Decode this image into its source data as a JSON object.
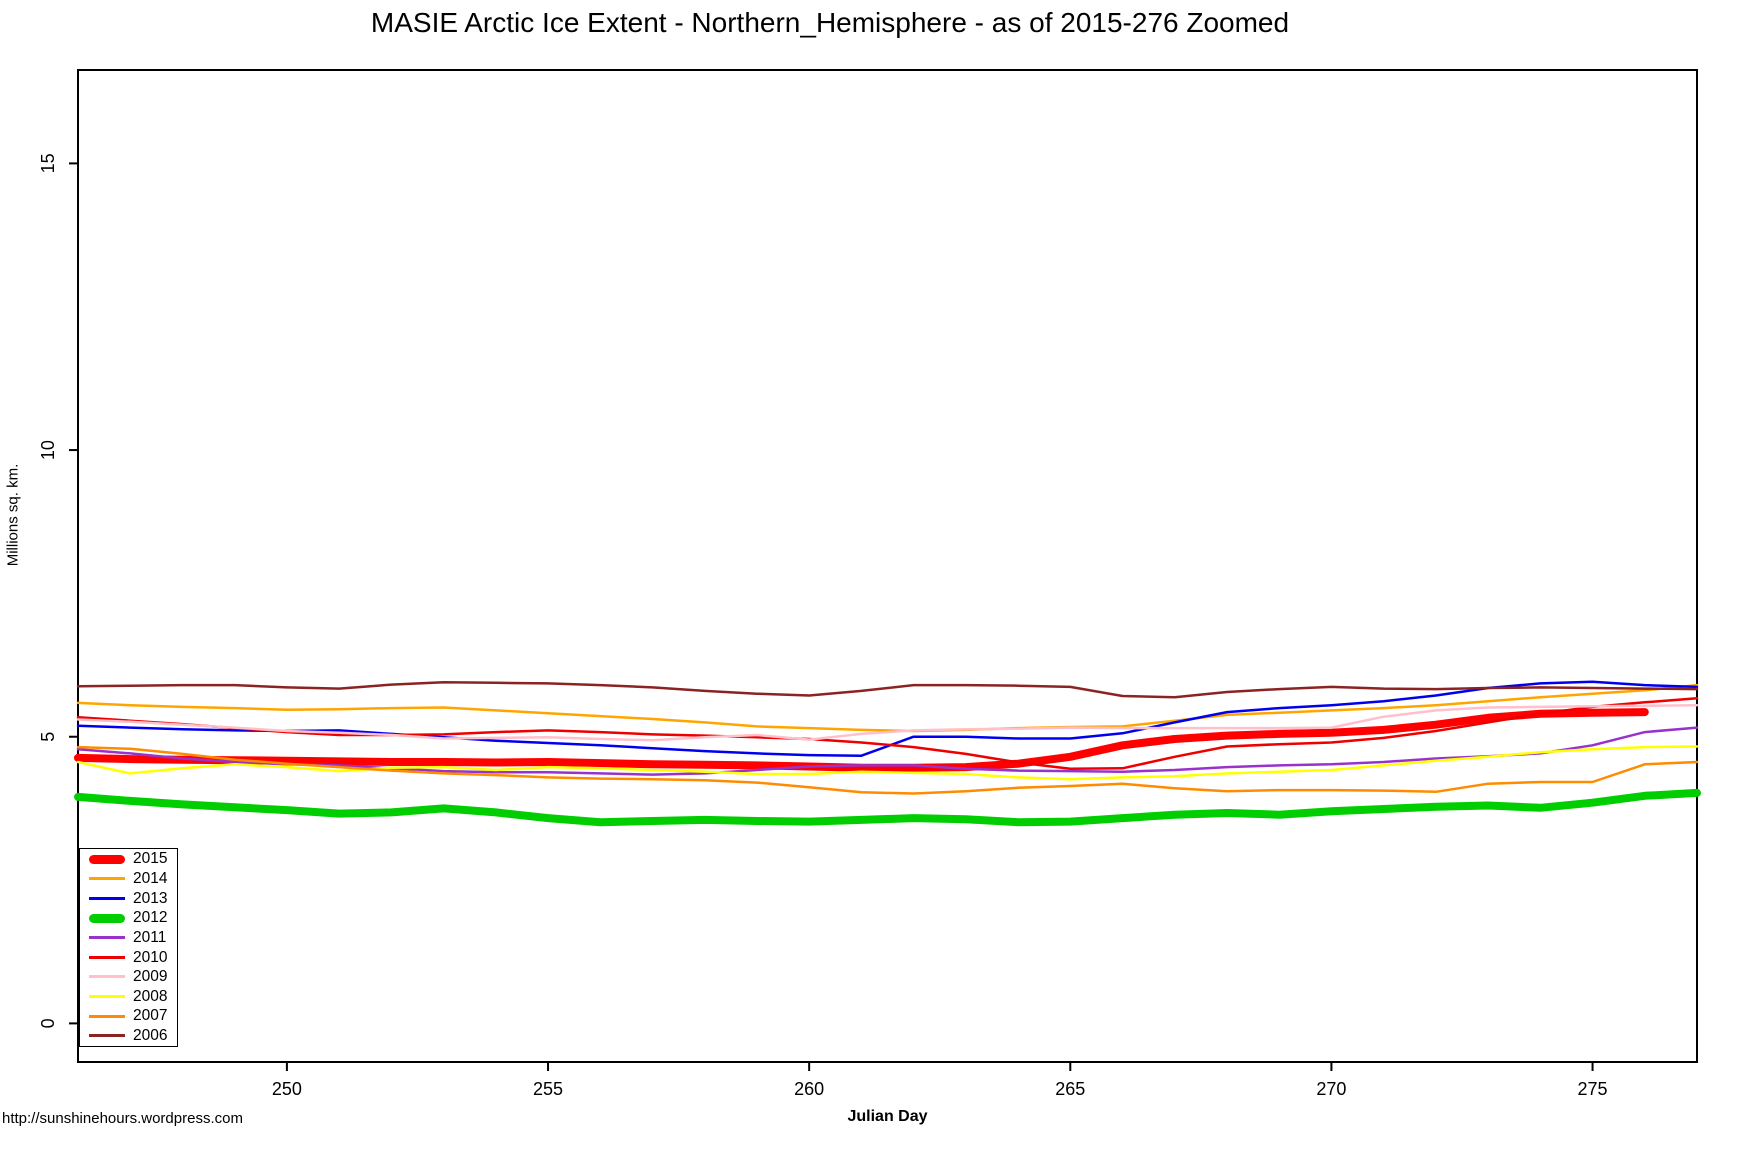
{
  "footer": {
    "url": "http://sunshinehours.wordpress.com"
  },
  "chart_data": {
    "type": "line",
    "title": "MASIE Arctic Ice Extent - Northern_Hemisphere - as of 2015-276 Zoomed",
    "xlabel": "Julian Day",
    "ylabel": "Millions sq. km.",
    "x_ticks": [
      250,
      255,
      260,
      265,
      270,
      275
    ],
    "y_ticks": [
      0,
      5,
      10,
      15
    ],
    "x_range": [
      246,
      277
    ],
    "ylim": [
      -0.67,
      16.63
    ],
    "grid": false,
    "legend_position": "bottom-left",
    "x": [
      246,
      247,
      248,
      249,
      250,
      251,
      252,
      253,
      254,
      255,
      256,
      257,
      258,
      259,
      260,
      261,
      262,
      263,
      264,
      265,
      266,
      267,
      268,
      269,
      270,
      271,
      272,
      273,
      274,
      275,
      276,
      277
    ],
    "series": [
      {
        "name": "2015",
        "color": "#FF0000",
        "line_width": 8,
        "values": [
          4.63,
          4.61,
          4.6,
          4.59,
          4.58,
          4.57,
          4.56,
          4.56,
          4.55,
          4.56,
          4.54,
          4.52,
          4.51,
          4.5,
          4.48,
          4.46,
          4.46,
          4.47,
          4.53,
          4.65,
          4.85,
          4.96,
          5.02,
          5.05,
          5.07,
          5.12,
          5.21,
          5.33,
          5.4,
          5.42,
          5.43,
          null
        ]
      },
      {
        "name": "2014",
        "color": "#FFA500",
        "line_width": 2.5,
        "values": [
          5.59,
          5.55,
          5.52,
          5.5,
          5.47,
          5.48,
          5.5,
          5.51,
          5.46,
          5.41,
          5.36,
          5.31,
          5.25,
          5.18,
          5.15,
          5.12,
          5.1,
          5.12,
          5.15,
          5.17,
          5.18,
          5.28,
          5.38,
          5.42,
          5.46,
          5.5,
          5.55,
          5.62,
          5.69,
          5.75,
          5.81,
          5.9
        ]
      },
      {
        "name": "2013",
        "color": "#0000EE",
        "line_width": 2.5,
        "values": [
          5.19,
          5.16,
          5.13,
          5.11,
          5.1,
          5.11,
          5.05,
          4.99,
          4.93,
          4.89,
          4.85,
          4.8,
          4.75,
          4.71,
          4.68,
          4.67,
          5.0,
          5.0,
          4.97,
          4.97,
          5.06,
          5.25,
          5.43,
          5.5,
          5.55,
          5.62,
          5.72,
          5.85,
          5.93,
          5.96,
          5.9,
          5.87
        ]
      },
      {
        "name": "2012",
        "color": "#00CE00",
        "line_width": 8,
        "values": [
          3.95,
          3.88,
          3.82,
          3.77,
          3.72,
          3.66,
          3.68,
          3.75,
          3.68,
          3.58,
          3.51,
          3.53,
          3.55,
          3.53,
          3.52,
          3.55,
          3.58,
          3.56,
          3.51,
          3.52,
          3.58,
          3.64,
          3.67,
          3.64,
          3.7,
          3.74,
          3.78,
          3.8,
          3.76,
          3.85,
          3.97,
          4.02
        ]
      },
      {
        "name": "2011",
        "color": "#9932CC",
        "line_width": 2.5,
        "values": [
          4.78,
          4.71,
          4.62,
          4.56,
          4.52,
          4.5,
          4.45,
          4.4,
          4.38,
          4.38,
          4.36,
          4.34,
          4.36,
          4.42,
          4.48,
          4.5,
          4.5,
          4.44,
          4.41,
          4.4,
          4.39,
          4.42,
          4.47,
          4.5,
          4.52,
          4.56,
          4.62,
          4.66,
          4.71,
          4.85,
          5.08,
          5.16
        ]
      },
      {
        "name": "2010",
        "color": "#EE0000",
        "line_width": 2.5,
        "values": [
          5.34,
          5.28,
          5.22,
          5.15,
          5.08,
          5.03,
          5.03,
          5.04,
          5.08,
          5.11,
          5.08,
          5.04,
          5.02,
          4.99,
          4.96,
          4.9,
          4.82,
          4.7,
          4.55,
          4.44,
          4.45,
          4.65,
          4.83,
          4.87,
          4.9,
          4.98,
          5.1,
          5.25,
          5.4,
          5.52,
          5.6,
          5.67
        ]
      },
      {
        "name": "2009",
        "color": "#FFC0CB",
        "line_width": 2.5,
        "values": [
          5.3,
          5.26,
          5.21,
          5.16,
          5.1,
          5.07,
          5.03,
          4.97,
          4.98,
          4.99,
          4.96,
          4.94,
          4.99,
          5.03,
          4.95,
          5.05,
          5.11,
          5.13,
          5.14,
          5.16,
          5.15,
          5.15,
          5.15,
          5.15,
          5.16,
          5.35,
          5.46,
          5.51,
          5.52,
          5.53,
          5.54,
          5.55
        ]
      },
      {
        "name": "2008",
        "color": "#FFFF00",
        "line_width": 2.5,
        "values": [
          4.56,
          4.36,
          4.45,
          4.52,
          4.47,
          4.4,
          4.46,
          4.47,
          4.42,
          4.47,
          4.45,
          4.42,
          4.39,
          4.35,
          4.35,
          4.39,
          4.37,
          4.35,
          4.29,
          4.26,
          4.29,
          4.31,
          4.36,
          4.39,
          4.42,
          4.5,
          4.58,
          4.65,
          4.73,
          4.78,
          4.82,
          4.83
        ]
      },
      {
        "name": "2007",
        "color": "#FF8C00",
        "line_width": 2.5,
        "values": [
          4.82,
          4.79,
          4.7,
          4.6,
          4.53,
          4.47,
          4.41,
          4.36,
          4.33,
          4.29,
          4.27,
          4.26,
          4.24,
          4.2,
          4.12,
          4.03,
          4.01,
          4.05,
          4.11,
          4.14,
          4.18,
          4.1,
          4.05,
          4.07,
          4.07,
          4.06,
          4.04,
          4.18,
          4.21,
          4.21,
          4.52,
          4.56
        ]
      },
      {
        "name": "2006",
        "color": "#8B2323",
        "line_width": 2.5,
        "values": [
          5.88,
          5.89,
          5.9,
          5.9,
          5.86,
          5.84,
          5.91,
          5.95,
          5.94,
          5.93,
          5.9,
          5.86,
          5.8,
          5.75,
          5.72,
          5.8,
          5.9,
          5.9,
          5.89,
          5.87,
          5.71,
          5.69,
          5.78,
          5.83,
          5.87,
          5.84,
          5.83,
          5.85,
          5.86,
          5.85,
          5.84,
          5.83
        ]
      }
    ]
  }
}
